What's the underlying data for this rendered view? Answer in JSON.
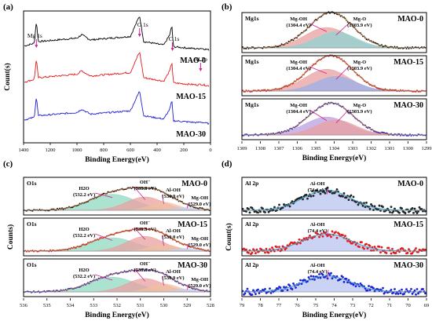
{
  "chart_data": [
    {
      "panel": "(a)",
      "type": "line",
      "xlabel": "Binding Energy(eV)",
      "ylabel": "Count(s)",
      "xlim": [
        1400,
        0
      ],
      "x_ticks": [
        1400,
        1200,
        1000,
        800,
        600,
        400,
        200,
        0
      ],
      "peak_labels": [
        "Mg 1s",
        "O 1s",
        "C 1s",
        "Al 2p"
      ],
      "peak_positions": [
        1304,
        531,
        285,
        74
      ],
      "series": [
        {
          "name": "MAO-0",
          "color": "#000000",
          "x": [
            1400,
            1320,
            1304,
            1290,
            1000,
            965,
            900,
            600,
            531,
            500,
            350,
            305,
            290,
            285,
            280,
            100,
            74,
            0
          ],
          "y": [
            0.12,
            0.2,
            0.85,
            0.25,
            0.35,
            0.45,
            0.3,
            0.4,
            1.0,
            0.25,
            0.15,
            0.45,
            0.7,
            0.6,
            0.1,
            0.04,
            0.06,
            0.0
          ]
        },
        {
          "name": "MAO-15",
          "color": "#e41a1c",
          "x": [
            1400,
            1320,
            1304,
            1290,
            1000,
            965,
            900,
            600,
            531,
            500,
            350,
            305,
            290,
            285,
            280,
            100,
            74,
            0
          ],
          "y": [
            0.12,
            0.2,
            0.8,
            0.25,
            0.35,
            0.45,
            0.3,
            0.4,
            1.0,
            0.25,
            0.15,
            0.45,
            0.7,
            0.6,
            0.1,
            0.04,
            0.06,
            0.0
          ]
        },
        {
          "name": "MAO-30",
          "color": "#1f1fd6",
          "x": [
            1400,
            1320,
            1304,
            1290,
            1000,
            965,
            900,
            600,
            531,
            500,
            350,
            305,
            290,
            285,
            280,
            100,
            74,
            0
          ],
          "y": [
            0.12,
            0.2,
            0.85,
            0.25,
            0.35,
            0.45,
            0.3,
            0.4,
            1.0,
            0.25,
            0.15,
            0.45,
            0.7,
            0.6,
            0.1,
            0.04,
            0.06,
            0.0
          ]
        }
      ]
    },
    {
      "panel": "(b)",
      "type": "line",
      "xlabel": "Binding Energy(eV)",
      "xlim": [
        1309,
        1299
      ],
      "x_ticks": [
        1309,
        1308,
        1307,
        1306,
        1305,
        1304,
        1303,
        1302,
        1301,
        1300,
        1299
      ],
      "subpanels": [
        {
          "name": "MAO-0",
          "element": "Mg1s",
          "color": "#000000",
          "components": [
            {
              "label": "Mg-OH",
              "value": "(1304.4 eV)",
              "center": 1304.4,
              "width": 1.2,
              "amp": 0.7,
              "color": "#e9a0a0"
            },
            {
              "label": "Mg-O",
              "value": "(1303.9 eV)",
              "center": 1303.9,
              "width": 1.1,
              "amp": 0.55,
              "color": "#8fd3d3"
            }
          ]
        },
        {
          "name": "MAO-15",
          "element": "Mg1s",
          "color": "#e41a1c",
          "components": [
            {
              "label": "Mg-OH",
              "value": "(1304.4 eV)",
              "center": 1304.4,
              "width": 1.2,
              "amp": 0.75,
              "color": "#e9a0a0"
            },
            {
              "label": "Mg-O",
              "value": "(1303.9 eV)",
              "center": 1303.9,
              "width": 1.1,
              "amp": 0.5,
              "color": "#9ab0e8"
            }
          ]
        },
        {
          "name": "MAO-30",
          "element": "Mg1s",
          "color": "#1f1fd6",
          "components": [
            {
              "label": "Mg-OH",
              "value": "(1304.4 eV)",
              "center": 1304.4,
              "width": 1.2,
              "amp": 0.6,
              "color": "#b9a0e0"
            },
            {
              "label": "Mg-O",
              "value": "(1303.9 eV)",
              "center": 1303.9,
              "width": 1.1,
              "amp": 0.5,
              "color": "#e9a0a0"
            }
          ]
        }
      ]
    },
    {
      "panel": "(c)",
      "type": "line",
      "xlabel": "Binding Energy(eV)",
      "ylabel": "Counts)",
      "xlim": [
        536,
        528
      ],
      "x_ticks": [
        536,
        535,
        534,
        533,
        532,
        531,
        530,
        529,
        528
      ],
      "subpanels": [
        {
          "name": "MAO-0",
          "element": "O1s",
          "color": "#000000",
          "components": [
            {
              "label": "H2O",
              "value": "(532.2 eV)",
              "center": 532.2,
              "width": 1.0,
              "amp": 0.6,
              "color": "#8fd8c0"
            },
            {
              "label": "OH⁻",
              "value": "(530.8 eV)",
              "center": 530.8,
              "width": 0.8,
              "amp": 0.5,
              "color": "#e9a0a0"
            },
            {
              "label": "Al-OH",
              "value": "(530.0 eV)",
              "center": 530.0,
              "width": 0.6,
              "amp": 0.3,
              "color": "#f0c0a0"
            },
            {
              "label": "Mg-OH",
              "value": "(529.0 eV)",
              "center": 529.0,
              "width": 0.5,
              "amp": 0.1,
              "color": "#c0d0f0"
            }
          ]
        },
        {
          "name": "MAO-15",
          "element": "O1s",
          "color": "#e41a1c",
          "components": [
            {
              "label": "H2O",
              "value": "(532.2 eV)",
              "center": 532.2,
              "width": 1.0,
              "amp": 0.5,
              "color": "#8fd8c0"
            },
            {
              "label": "OH⁻",
              "value": "(530.8 eV)",
              "center": 530.8,
              "width": 0.8,
              "amp": 0.55,
              "color": "#e9a0a0"
            },
            {
              "label": "Al-OH",
              "value": "(530.0 eV)",
              "center": 530.0,
              "width": 0.6,
              "amp": 0.25,
              "color": "#f0c0a0"
            },
            {
              "label": "Mg-OH",
              "value": "(529.0 eV)",
              "center": 529.0,
              "width": 0.5,
              "amp": 0.1,
              "color": "#c0d0f0"
            }
          ]
        },
        {
          "name": "MAO-30",
          "element": "O1s",
          "color": "#1f1fd6",
          "components": [
            {
              "label": "H2O",
              "value": "(532.2 eV)",
              "center": 532.2,
              "width": 1.0,
              "amp": 0.55,
              "color": "#8fd8c0"
            },
            {
              "label": "OH⁻",
              "value": "(530.8 eV)",
              "center": 530.8,
              "width": 0.8,
              "amp": 0.5,
              "color": "#e9a0a0"
            },
            {
              "label": "Al-OH",
              "value": "(530.0 eV)",
              "center": 530.0,
              "width": 0.6,
              "amp": 0.3,
              "color": "#f0c0a0"
            },
            {
              "label": "Mg-OH",
              "value": "(529.0 eV)",
              "center": 529.0,
              "width": 0.5,
              "amp": 0.1,
              "color": "#c0d0f0"
            }
          ]
        }
      ]
    },
    {
      "panel": "(d)",
      "type": "scatter",
      "xlabel": "Binding Energy(eV)",
      "ylabel": "Count(s)",
      "xlim": [
        79,
        69
      ],
      "x_ticks": [
        79,
        78,
        77,
        76,
        75,
        74,
        73,
        72,
        71,
        70,
        69
      ],
      "subpanels": [
        {
          "name": "MAO-0",
          "element": "Al 2p",
          "color": "#222222",
          "components": [
            {
              "label": "Al-OH",
              "value": "(74.4 eV)",
              "center": 74.4,
              "width": 1.3,
              "amp": 0.75,
              "color": "#b8c4f0"
            }
          ]
        },
        {
          "name": "MAO-15",
          "element": "Al 2p",
          "color": "#e41a1c",
          "components": [
            {
              "label": "Al-OH",
              "value": "(74.4 eV)",
              "center": 74.4,
              "width": 1.3,
              "amp": 0.65,
              "color": "#b8c4f0"
            }
          ]
        },
        {
          "name": "MAO-30",
          "element": "Al 2p",
          "color": "#1f1fd6",
          "components": [
            {
              "label": "Al-OH",
              "value": "(74.4 eV)",
              "center": 74.4,
              "width": 1.3,
              "amp": 0.6,
              "color": "#b8c4f0"
            }
          ]
        }
      ]
    }
  ],
  "accent_color": "#d02090"
}
